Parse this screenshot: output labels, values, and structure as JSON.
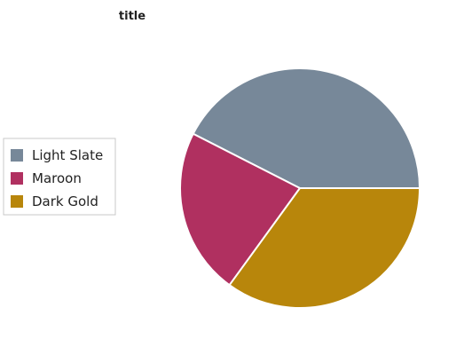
{
  "chart_data": {
    "type": "pie",
    "title": "title",
    "categories": [
      "Light Slate",
      "Maroon",
      "Dark Gold"
    ],
    "values": [
      42.5,
      22.5,
      35.0
    ],
    "colors": [
      "#778899",
      "#b03060",
      "#b8860b"
    ],
    "legend_position": "left",
    "start_angle_deg": 0
  }
}
